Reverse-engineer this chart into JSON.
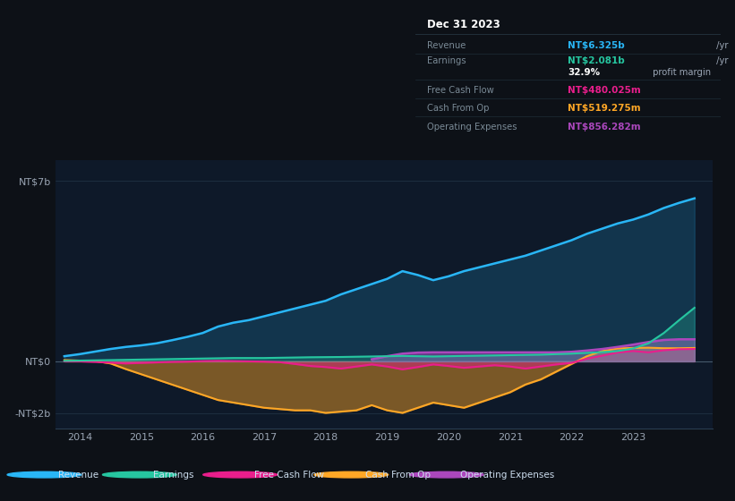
{
  "background_color": "#0d1117",
  "plot_bg_color": "#0e1929",
  "title": "Dec 31 2023",
  "yticks_labels": [
    "NT$7b",
    "NT$0",
    "-NT$2b"
  ],
  "yticks_values": [
    7000000000,
    0,
    -2000000000
  ],
  "ylim": [
    -2600000000,
    7800000000
  ],
  "xlim": [
    2013.6,
    2024.3
  ],
  "xticks": [
    2014,
    2015,
    2016,
    2017,
    2018,
    2019,
    2020,
    2021,
    2022,
    2023
  ],
  "legend": [
    {
      "label": "Revenue",
      "color": "#29b6f6"
    },
    {
      "label": "Earnings",
      "color": "#26c6a0"
    },
    {
      "label": "Free Cash Flow",
      "color": "#e91e8c"
    },
    {
      "label": "Cash From Op",
      "color": "#ffa726"
    },
    {
      "label": "Operating Expenses",
      "color": "#ab47bc"
    }
  ],
  "info_box": {
    "title": "Dec 31 2023",
    "rows": [
      {
        "label": "Revenue",
        "value": "NT$6.325b",
        "value_color": "#29b6f6",
        "suffix": " /yr"
      },
      {
        "label": "Earnings",
        "value": "NT$2.081b",
        "value_color": "#26c6a0",
        "suffix": " /yr"
      },
      {
        "label": "",
        "value": "32.9%",
        "value_color": "#ffffff",
        "suffix": " profit margin"
      },
      {
        "label": "Free Cash Flow",
        "value": "NT$480.025m",
        "value_color": "#e91e8c",
        "suffix": " /yr"
      },
      {
        "label": "Cash From Op",
        "value": "NT$519.275m",
        "value_color": "#ffa726",
        "suffix": " /yr"
      },
      {
        "label": "Operating Expenses",
        "value": "NT$856.282m",
        "value_color": "#ab47bc",
        "suffix": " /yr"
      }
    ]
  },
  "revenue_x": [
    2013.75,
    2014.0,
    2014.25,
    2014.5,
    2014.75,
    2015.0,
    2015.25,
    2015.5,
    2015.75,
    2016.0,
    2016.25,
    2016.5,
    2016.75,
    2017.0,
    2017.25,
    2017.5,
    2017.75,
    2018.0,
    2018.25,
    2018.5,
    2018.75,
    2019.0,
    2019.25,
    2019.5,
    2019.75,
    2020.0,
    2020.25,
    2020.5,
    2020.75,
    2021.0,
    2021.25,
    2021.5,
    2021.75,
    2022.0,
    2022.25,
    2022.5,
    2022.75,
    2023.0,
    2023.25,
    2023.5,
    2023.75,
    2024.0
  ],
  "revenue_y": [
    200000000,
    280000000,
    380000000,
    480000000,
    560000000,
    620000000,
    700000000,
    820000000,
    950000000,
    1100000000,
    1350000000,
    1500000000,
    1600000000,
    1750000000,
    1900000000,
    2050000000,
    2200000000,
    2350000000,
    2600000000,
    2800000000,
    3000000000,
    3200000000,
    3500000000,
    3350000000,
    3150000000,
    3300000000,
    3500000000,
    3650000000,
    3800000000,
    3950000000,
    4100000000,
    4300000000,
    4500000000,
    4700000000,
    4950000000,
    5150000000,
    5350000000,
    5500000000,
    5700000000,
    5950000000,
    6150000000,
    6325000000
  ],
  "earnings_x": [
    2013.75,
    2014.0,
    2014.25,
    2014.5,
    2014.75,
    2015.0,
    2015.25,
    2015.5,
    2015.75,
    2016.0,
    2016.25,
    2016.5,
    2016.75,
    2017.0,
    2017.25,
    2017.5,
    2017.75,
    2018.0,
    2018.25,
    2018.5,
    2018.75,
    2019.0,
    2019.25,
    2019.5,
    2019.75,
    2020.0,
    2020.25,
    2020.5,
    2020.75,
    2021.0,
    2021.25,
    2021.5,
    2021.75,
    2022.0,
    2022.25,
    2022.5,
    2022.75,
    2023.0,
    2023.25,
    2023.5,
    2023.75,
    2024.0
  ],
  "earnings_y": [
    20000000,
    30000000,
    40000000,
    50000000,
    60000000,
    70000000,
    80000000,
    90000000,
    100000000,
    110000000,
    120000000,
    130000000,
    130000000,
    130000000,
    140000000,
    150000000,
    160000000,
    165000000,
    170000000,
    180000000,
    190000000,
    200000000,
    210000000,
    200000000,
    190000000,
    200000000,
    210000000,
    220000000,
    230000000,
    240000000,
    250000000,
    260000000,
    280000000,
    300000000,
    330000000,
    360000000,
    400000000,
    500000000,
    700000000,
    1100000000,
    1600000000,
    2081000000
  ],
  "fcf_x": [
    2013.75,
    2014.0,
    2014.25,
    2014.5,
    2014.75,
    2015.0,
    2015.25,
    2015.5,
    2015.75,
    2016.0,
    2016.25,
    2016.5,
    2016.75,
    2017.0,
    2017.25,
    2017.5,
    2017.75,
    2018.0,
    2018.25,
    2018.5,
    2018.75,
    2019.0,
    2019.25,
    2019.5,
    2019.75,
    2020.0,
    2020.25,
    2020.5,
    2020.75,
    2021.0,
    2021.25,
    2021.5,
    2021.75,
    2022.0,
    2022.25,
    2022.5,
    2022.75,
    2023.0,
    2023.25,
    2023.5,
    2023.75,
    2024.0
  ],
  "fcf_y": [
    0,
    0,
    -20000000,
    -50000000,
    -80000000,
    -60000000,
    -40000000,
    -20000000,
    -10000000,
    10000000,
    20000000,
    10000000,
    0,
    -10000000,
    -30000000,
    -100000000,
    -180000000,
    -220000000,
    -280000000,
    -200000000,
    -120000000,
    -200000000,
    -310000000,
    -220000000,
    -120000000,
    -180000000,
    -250000000,
    -200000000,
    -150000000,
    -200000000,
    -280000000,
    -200000000,
    -120000000,
    -60000000,
    100000000,
    220000000,
    340000000,
    400000000,
    350000000,
    430000000,
    470000000,
    480000000
  ],
  "cop_x": [
    2013.75,
    2014.0,
    2014.25,
    2014.5,
    2014.75,
    2015.0,
    2015.25,
    2015.5,
    2015.75,
    2016.0,
    2016.25,
    2016.5,
    2016.75,
    2017.0,
    2017.25,
    2017.5,
    2017.75,
    2018.0,
    2018.25,
    2018.5,
    2018.75,
    2019.0,
    2019.25,
    2019.5,
    2019.75,
    2020.0,
    2020.25,
    2020.5,
    2020.75,
    2021.0,
    2021.25,
    2021.5,
    2021.75,
    2022.0,
    2022.25,
    2022.5,
    2022.75,
    2023.0,
    2023.25,
    2023.5,
    2023.75,
    2024.0
  ],
  "cop_y": [
    50000000,
    30000000,
    10000000,
    -80000000,
    -300000000,
    -500000000,
    -700000000,
    -900000000,
    -1100000000,
    -1300000000,
    -1500000000,
    -1600000000,
    -1700000000,
    -1800000000,
    -1850000000,
    -1900000000,
    -1900000000,
    -2000000000,
    -1950000000,
    -1900000000,
    -1700000000,
    -1900000000,
    -2000000000,
    -1800000000,
    -1600000000,
    -1700000000,
    -1800000000,
    -1600000000,
    -1400000000,
    -1200000000,
    -900000000,
    -700000000,
    -400000000,
    -100000000,
    200000000,
    400000000,
    500000000,
    520000000,
    530000000,
    510000000,
    510000000,
    519275000
  ],
  "opex_x": [
    2018.75,
    2019.0,
    2019.25,
    2019.5,
    2019.75,
    2020.0,
    2020.25,
    2020.5,
    2020.75,
    2021.0,
    2021.25,
    2021.5,
    2021.75,
    2022.0,
    2022.25,
    2022.5,
    2022.75,
    2023.0,
    2023.25,
    2023.5,
    2023.75,
    2024.0
  ],
  "opex_y": [
    80000000,
    200000000,
    300000000,
    340000000,
    350000000,
    350000000,
    350000000,
    350000000,
    350000000,
    350000000,
    350000000,
    350000000,
    350000000,
    370000000,
    420000000,
    480000000,
    560000000,
    650000000,
    750000000,
    830000000,
    856000000,
    856282000
  ]
}
